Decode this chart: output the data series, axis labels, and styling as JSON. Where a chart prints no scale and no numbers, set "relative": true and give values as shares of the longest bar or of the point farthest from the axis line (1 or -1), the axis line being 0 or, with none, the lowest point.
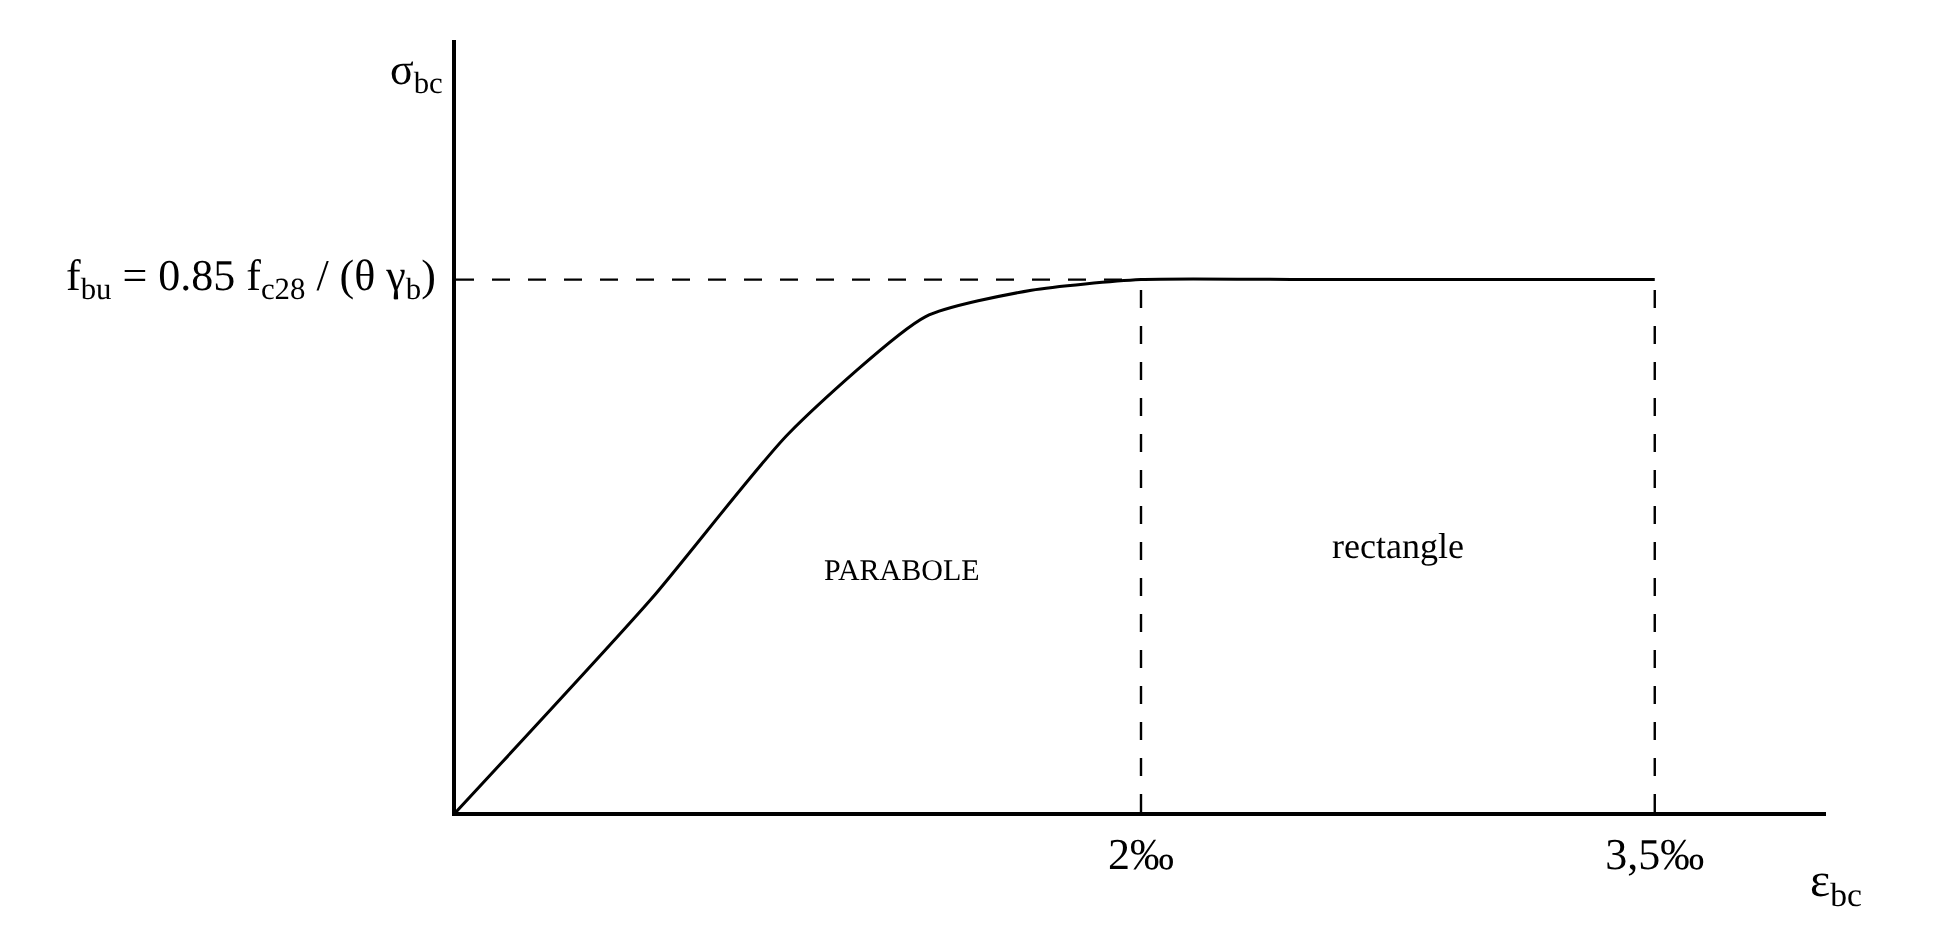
{
  "chart_data": {
    "type": "line",
    "relative": true,
    "xlabel": "ε$_{bc}$",
    "ylabel": "σ$_{bc}$",
    "x": [
      0,
      0.57,
      0.97,
      1.37,
      1.68,
      2,
      2.5,
      3,
      3.5
    ],
    "series": [
      {
        "color": "#000000",
        "values": [
          0,
          0.4,
          0.71,
          0.93,
          0.98,
          1,
          1,
          1,
          1
        ]
      }
    ],
    "xlim": [
      0,
      4
    ],
    "xticks": [
      {
        "value": 2,
        "label": "2‰"
      },
      {
        "value": 3.5,
        "label": "3,5‰"
      }
    ],
    "ref_lines": [
      {
        "axis": "y",
        "value": 1,
        "line_style": "dashed",
        "color": "#000000"
      },
      {
        "axis": "x",
        "value": 2,
        "line_style": "dashed",
        "color": "#000000"
      },
      {
        "axis": "x",
        "value": 3.5,
        "line_style": "dashed",
        "color": "#000000"
      }
    ],
    "annotations": [
      "f$_{bu}$ = 0.85 f$_{c28}$ / (θ γ$_{b}$)",
      "PARABOLE",
      "rectangle"
    ],
    "marker": "none",
    "line_style": "solid"
  }
}
